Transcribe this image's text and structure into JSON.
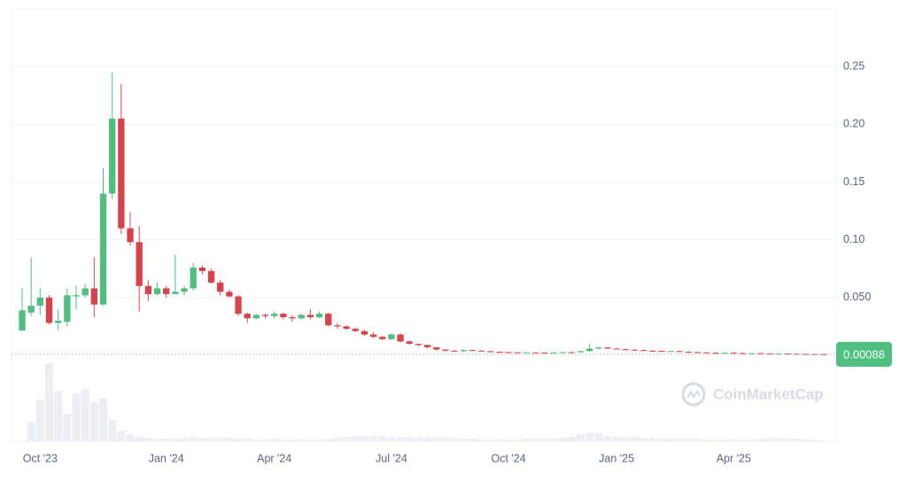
{
  "chart_data": {
    "type": "candlestick",
    "categories": [
      null,
      null,
      "Oct '23",
      null,
      null,
      null,
      null,
      null,
      null,
      null,
      null,
      null,
      null,
      null,
      null,
      null,
      "Jan '24",
      null,
      null,
      null,
      null,
      null,
      null,
      null,
      null,
      null,
      null,
      null,
      "Apr '24",
      null,
      null,
      null,
      null,
      null,
      null,
      null,
      null,
      null,
      null,
      null,
      null,
      "Jul '24",
      null,
      null,
      null,
      null,
      null,
      null,
      null,
      null,
      null,
      null,
      null,
      null,
      "Oct '24",
      null,
      null,
      null,
      null,
      null,
      null,
      null,
      null,
      null,
      null,
      null,
      "Jan '25",
      null,
      null,
      null,
      null,
      null,
      null,
      null,
      null,
      null,
      null,
      null,
      null,
      "Apr '25",
      null,
      null,
      null,
      null,
      null,
      null,
      null,
      null,
      null,
      null
    ],
    "open": [
      0.0215,
      0.037,
      0.043,
      0.05,
      0.028,
      0.029,
      0.051,
      0.052,
      0.058,
      0.044,
      0.14,
      0.205,
      0.11,
      0.098,
      0.06,
      0.053,
      0.058,
      0.053,
      0.055,
      0.058,
      0.076,
      0.073,
      0.063,
      0.055,
      0.051,
      0.036,
      0.032,
      0.035,
      0.034,
      0.036,
      0.033,
      0.032,
      0.035,
      0.033,
      0.036,
      0.026,
      0.025,
      0.023,
      0.021,
      0.018,
      0.016,
      0.014,
      0.018,
      0.012,
      0.01,
      0.009,
      0.007,
      0.005,
      0.004,
      0.0035,
      0.0045,
      0.004,
      0.0035,
      0.003,
      0.0028,
      0.0026,
      0.0024,
      0.0025,
      0.0023,
      0.0022,
      0.0024,
      0.0028,
      0.0026,
      0.0036,
      0.0058,
      0.0068,
      0.0058,
      0.0052,
      0.0048,
      0.0045,
      0.004,
      0.0038,
      0.0034,
      0.0036,
      0.0031,
      0.0028,
      0.0025,
      0.0022,
      0.002,
      0.0022,
      0.0019,
      0.0017,
      0.0018,
      0.0016,
      0.0014,
      0.0015,
      0.0013,
      0.0012,
      0.0011,
      0.001
    ],
    "high": [
      0.058,
      0.085,
      0.058,
      0.052,
      0.04,
      0.058,
      0.06,
      0.062,
      0.085,
      0.162,
      0.245,
      0.235,
      0.124,
      0.112,
      0.065,
      0.063,
      0.06,
      0.087,
      0.06,
      0.08,
      0.078,
      0.075,
      0.065,
      0.057,
      0.052,
      0.037,
      0.036,
      0.036,
      0.038,
      0.037,
      0.035,
      0.036,
      0.04,
      0.038,
      0.037,
      0.028,
      0.026,
      0.024,
      0.022,
      0.02,
      0.017,
      0.019,
      0.019,
      0.013,
      0.01,
      0.009,
      0.007,
      0.005,
      0.0045,
      0.005,
      0.005,
      0.0045,
      0.004,
      0.0035,
      0.003,
      0.003,
      0.0028,
      0.0028,
      0.0026,
      0.0026,
      0.003,
      0.0032,
      0.004,
      0.01,
      0.0075,
      0.0072,
      0.0065,
      0.006,
      0.0055,
      0.005,
      0.0046,
      0.0042,
      0.0038,
      0.004,
      0.0034,
      0.0032,
      0.0028,
      0.0026,
      0.0024,
      0.0028,
      0.0022,
      0.002,
      0.0021,
      0.0019,
      0.0016,
      0.0017,
      0.0015,
      0.0014,
      0.0013,
      0.0012
    ],
    "low": [
      0.021,
      0.034,
      0.035,
      0.027,
      0.022,
      0.025,
      0.04,
      0.05,
      0.033,
      0.043,
      0.135,
      0.105,
      0.095,
      0.038,
      0.047,
      0.052,
      0.05,
      0.053,
      0.052,
      0.056,
      0.07,
      0.062,
      0.052,
      0.05,
      0.034,
      0.028,
      0.031,
      0.032,
      0.032,
      0.031,
      0.029,
      0.031,
      0.031,
      0.032,
      0.025,
      0.023,
      0.022,
      0.02,
      0.017,
      0.015,
      0.013,
      0.013,
      0.011,
      0.009,
      0.008,
      0.006,
      0.004,
      0.003,
      0.003,
      0.003,
      0.004,
      0.0035,
      0.003,
      0.0025,
      0.0024,
      0.0022,
      0.0022,
      0.0022,
      0.002,
      0.002,
      0.0022,
      0.0024,
      0.0024,
      0.0034,
      0.005,
      0.0055,
      0.005,
      0.0045,
      0.0042,
      0.0038,
      0.0035,
      0.0032,
      0.003,
      0.003,
      0.0026,
      0.0024,
      0.002,
      0.0018,
      0.0018,
      0.0018,
      0.0016,
      0.0014,
      0.0015,
      0.0013,
      0.0012,
      0.0012,
      0.0011,
      0.001,
      0.0009,
      0.0008
    ],
    "close": [
      0.039,
      0.043,
      0.05,
      0.028,
      0.03,
      0.052,
      0.052,
      0.058,
      0.044,
      0.14,
      0.205,
      0.11,
      0.098,
      0.06,
      0.053,
      0.058,
      0.053,
      0.055,
      0.058,
      0.076,
      0.073,
      0.063,
      0.055,
      0.051,
      0.036,
      0.032,
      0.035,
      0.034,
      0.036,
      0.033,
      0.032,
      0.035,
      0.033,
      0.036,
      0.026,
      0.025,
      0.023,
      0.021,
      0.018,
      0.016,
      0.014,
      0.018,
      0.012,
      0.01,
      0.009,
      0.007,
      0.005,
      0.004,
      0.0035,
      0.0045,
      0.004,
      0.0035,
      0.003,
      0.0028,
      0.0026,
      0.0024,
      0.0025,
      0.0023,
      0.0022,
      0.0024,
      0.0028,
      0.0026,
      0.0036,
      0.0058,
      0.0068,
      0.0058,
      0.0052,
      0.0048,
      0.0045,
      0.004,
      0.0038,
      0.0034,
      0.0036,
      0.0031,
      0.0028,
      0.0025,
      0.0022,
      0.002,
      0.0022,
      0.0019,
      0.0017,
      0.0018,
      0.0016,
      0.0014,
      0.0015,
      0.0013,
      0.0012,
      0.0011,
      0.001,
      0.00088
    ],
    "volume": [
      0,
      22,
      48,
      90,
      58,
      32,
      55,
      60,
      45,
      50,
      25,
      12,
      8,
      5,
      4,
      3,
      3,
      3,
      4,
      5,
      4,
      4,
      4,
      4,
      3,
      3,
      2,
      2,
      3,
      2,
      2,
      2,
      2,
      2,
      3,
      4,
      5,
      6,
      6,
      6,
      6,
      5,
      5,
      5,
      5,
      5,
      5,
      4,
      4,
      3,
      3,
      2,
      2,
      2,
      2,
      2,
      3,
      3,
      3,
      3,
      4,
      5,
      8,
      10,
      9,
      6,
      5,
      5,
      5,
      4,
      4,
      3,
      3,
      3,
      3,
      3,
      2,
      2,
      2,
      2,
      2,
      2,
      3,
      4,
      4,
      3,
      3,
      2,
      2,
      1
    ],
    "volume_lim": [
      0,
      100
    ],
    "ylim": [
      0,
      0.3
    ],
    "yticks": [
      {
        "value": 0.05,
        "label": "0.050"
      },
      {
        "value": 0.1,
        "label": "0.10"
      },
      0.15,
      {
        "value": 0.2,
        "label": "0.20"
      },
      0.25
    ],
    "grid": true,
    "up_color": "#4fbf7f",
    "down_color": "#d8434b",
    "volume_color": "#eceef3",
    "watermark": "CoinMarketCap"
  }
}
